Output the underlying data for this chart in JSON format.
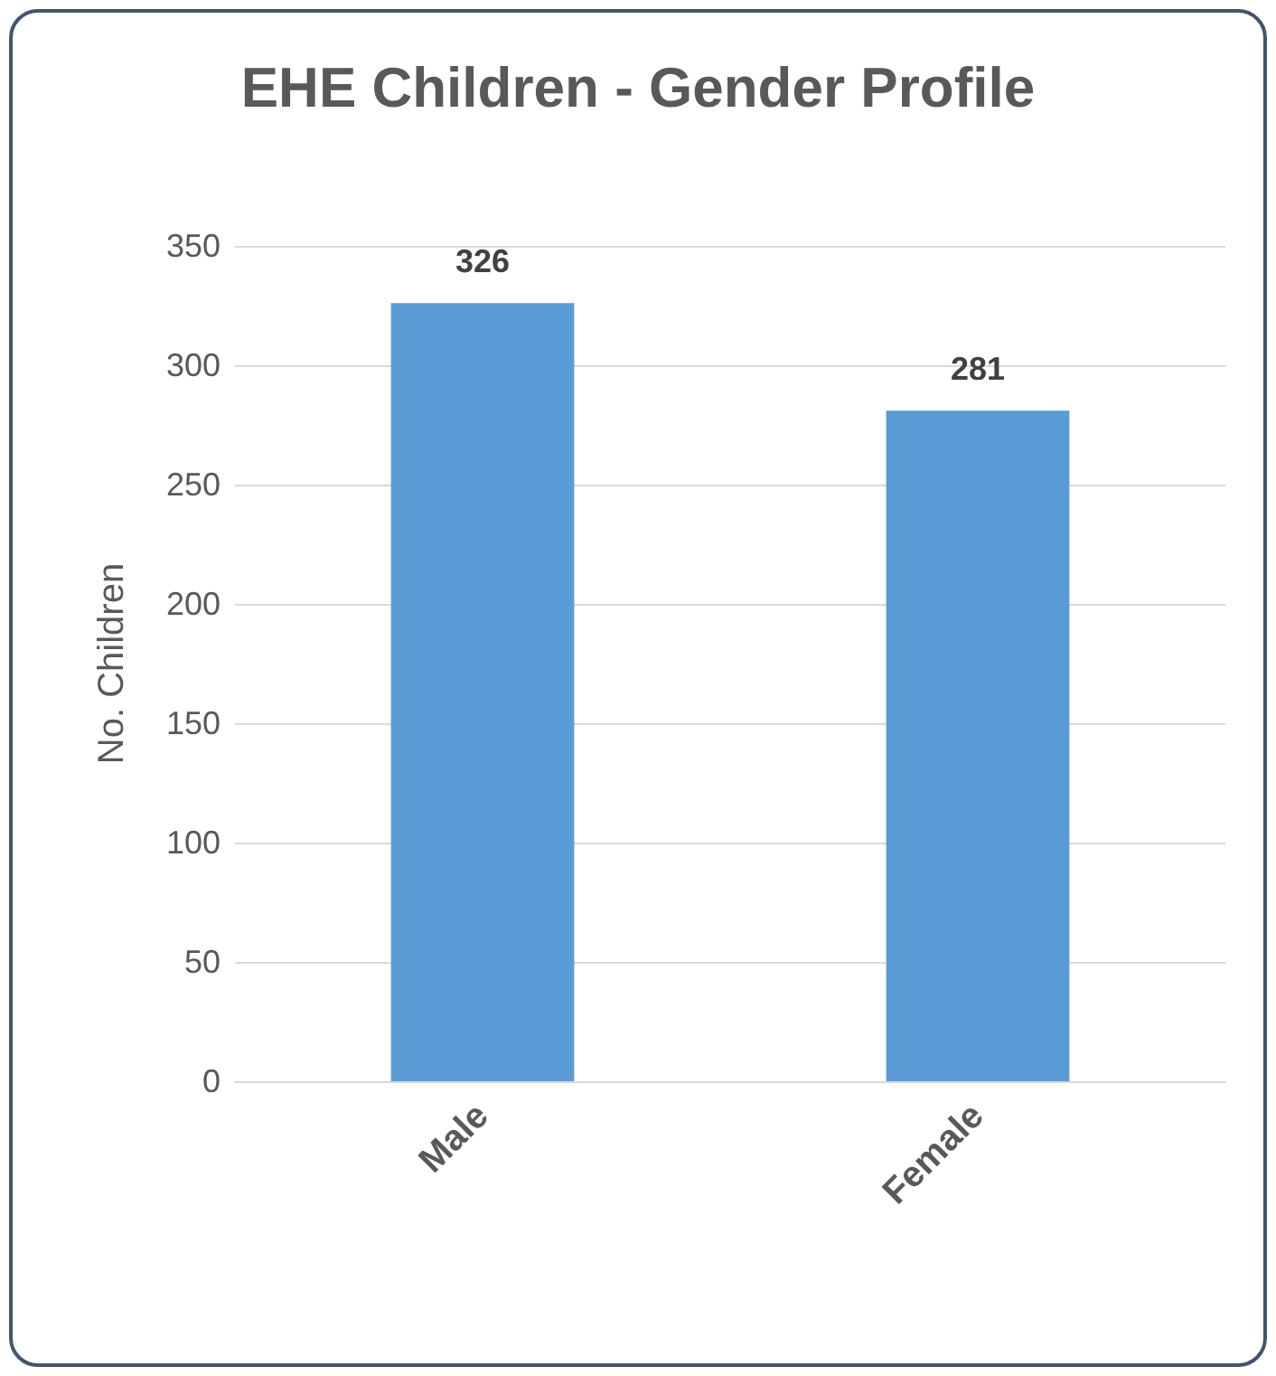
{
  "chart_data": {
    "type": "bar",
    "title": "EHE Children - Gender Profile",
    "ylabel": "No. Children",
    "categories": [
      "Male",
      "Female"
    ],
    "values": [
      326,
      281
    ],
    "color": "#5b9bd5",
    "ylim": [
      0,
      350
    ],
    "yticks": [
      0,
      50,
      100,
      150,
      200,
      250,
      300,
      350
    ],
    "grid": "y",
    "data_labels": true
  }
}
